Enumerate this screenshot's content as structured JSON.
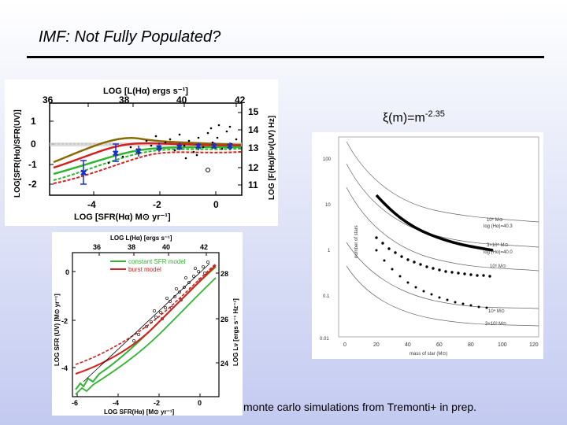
{
  "slide": {
    "title": "IMF: Not Fully Populated?",
    "equation": {
      "base": "ξ(m)=m",
      "exponent": "-2.35"
    },
    "caption": "monte carlo simulations from Tremonti+ in prep."
  },
  "figure1": {
    "top_axis_label": "LOG [L(Hα) ergs s⁻¹]",
    "top_ticks": [
      "36",
      "38",
      "40",
      "42"
    ],
    "bottom_axis_label": "LOG [SFR(Hα) M⊙ yr⁻¹]",
    "bottom_ticks": [
      "-4",
      "-2",
      "0"
    ],
    "left_axis_label": "LOG[SFR(Hα)/SFR(UV)]",
    "left_ticks": [
      "1",
      "0",
      "-1",
      "-2"
    ],
    "right_axis_label": "LOG [F(Hα)/Fν(UV) Hz]",
    "right_ticks": [
      "15",
      "14",
      "13",
      "12",
      "11"
    ]
  },
  "figure2": {
    "top_axis_label": "LOG L(Hα) [ergs s⁻¹]",
    "top_ticks": [
      "36",
      "38",
      "40",
      "42"
    ],
    "bottom_axis_label": "LOG SFR(Hα) [M⊙ yr⁻¹]",
    "bottom_ticks": [
      "-6",
      "-4",
      "-2",
      "0"
    ],
    "left_axis_label": "LOG SFR (UV) [M⊙ yr⁻¹]",
    "left_ticks": [
      "0",
      "-2",
      "-4"
    ],
    "right_axis_label": "LOG Lν [ergs s⁻¹ Hz⁻¹]",
    "right_ticks": [
      "28",
      "26",
      "24"
    ],
    "legend": [
      "constant SFR model",
      "burst model"
    ],
    "colors": {
      "constant": "#2fb52f",
      "burst": "#d62020"
    }
  },
  "figure3": {
    "x_axis_label": "mass of star (M⊙)",
    "x_ticks": [
      "0",
      "20",
      "40",
      "60",
      "80",
      "100",
      "120"
    ],
    "y_axis_label": "number of stars",
    "y_ticks": [
      "100",
      "10",
      "1",
      "0.1",
      "0.01"
    ],
    "curve_labels": [
      "10⁶ M⊙",
      "log (Hα)=40.3",
      "3×10⁵ M⊙",
      "log (Hα)=40.0",
      "10⁵ M⊙",
      "10⁴ M⊙",
      "3×10³ M⊙"
    ]
  }
}
